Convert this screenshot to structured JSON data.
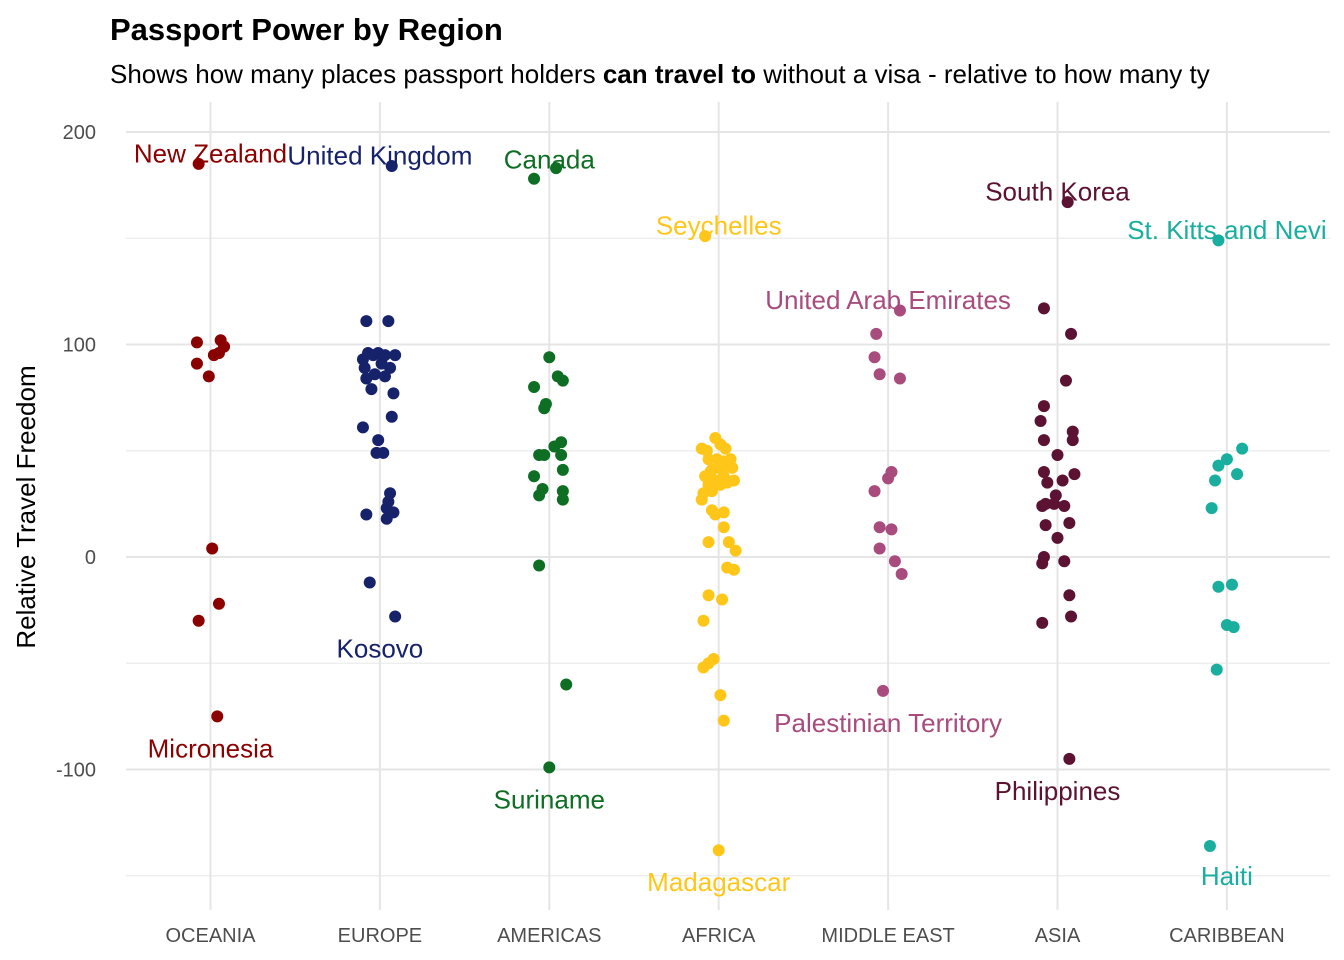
{
  "chart_data": {
    "type": "scatter",
    "title": "Passport Power by Region",
    "subtitle": {
      "before": "Shows how many places passport holders ",
      "bold": "can travel to",
      "after": " without a visa - relative to how many ty"
    },
    "xlabel": "",
    "ylabel": "Relative Travel Freedom",
    "ylim": [
      -160,
      212
    ],
    "y_ticks": [
      200,
      100,
      0,
      -100
    ],
    "grid": true,
    "legend": "none",
    "categories": [
      "OCEANIA",
      "EUROPE",
      "AMERICAS",
      "AFRICA",
      "MIDDLE EAST",
      "ASIA",
      "CARIBBEAN"
    ],
    "series": [
      {
        "category": "OCEANIA",
        "color": "#8B0000",
        "points": [
          [
            -0.07,
            185
          ],
          [
            -0.08,
            101
          ],
          [
            -0.08,
            91
          ],
          [
            -0.01,
            85
          ],
          [
            0.02,
            95
          ],
          [
            0.06,
            102
          ],
          [
            0.08,
            99
          ],
          [
            0.05,
            96
          ],
          [
            0.01,
            4
          ],
          [
            0.05,
            -22
          ],
          [
            -0.07,
            -30
          ],
          [
            0.04,
            -75
          ]
        ]
      },
      {
        "category": "EUROPE",
        "color": "#16226A",
        "points": [
          [
            0.07,
            184
          ],
          [
            -0.08,
            111
          ],
          [
            0.05,
            111
          ],
          [
            -0.1,
            93
          ],
          [
            -0.07,
            96
          ],
          [
            -0.04,
            95
          ],
          [
            -0.01,
            96
          ],
          [
            0.03,
            95
          ],
          [
            0.09,
            95
          ],
          [
            -0.09,
            89
          ],
          [
            0.06,
            89
          ],
          [
            -0.08,
            84
          ],
          [
            -0.03,
            86
          ],
          [
            0.03,
            85
          ],
          [
            0.01,
            91
          ],
          [
            -0.05,
            79
          ],
          [
            0.08,
            77
          ],
          [
            0.07,
            66
          ],
          [
            -0.1,
            61
          ],
          [
            -0.01,
            55
          ],
          [
            -0.02,
            49
          ],
          [
            0.02,
            49
          ],
          [
            0.06,
            30
          ],
          [
            0.05,
            26
          ],
          [
            0.04,
            23
          ],
          [
            0.08,
            21
          ],
          [
            -0.08,
            20
          ],
          [
            0.04,
            18
          ],
          [
            -0.06,
            -12
          ],
          [
            0.09,
            -28
          ]
        ]
      },
      {
        "category": "AMERICAS",
        "color": "#0E6E23",
        "points": [
          [
            0.04,
            183
          ],
          [
            -0.09,
            178
          ],
          [
            0.0,
            94
          ],
          [
            0.05,
            85
          ],
          [
            0.08,
            83
          ],
          [
            -0.09,
            80
          ],
          [
            -0.02,
            72
          ],
          [
            -0.03,
            70
          ],
          [
            0.07,
            54
          ],
          [
            0.03,
            52
          ],
          [
            -0.06,
            48
          ],
          [
            -0.03,
            48
          ],
          [
            0.07,
            48
          ],
          [
            0.08,
            41
          ],
          [
            -0.09,
            38
          ],
          [
            -0.04,
            32
          ],
          [
            -0.06,
            29
          ],
          [
            0.08,
            31
          ],
          [
            0.08,
            27
          ],
          [
            -0.06,
            -4
          ],
          [
            0.1,
            -60
          ],
          [
            0.0,
            -99
          ]
        ]
      },
      {
        "category": "AFRICA",
        "color": "#FFC61A",
        "points": [
          [
            -0.08,
            151
          ],
          [
            -0.1,
            51
          ],
          [
            -0.07,
            50
          ],
          [
            -0.02,
            56
          ],
          [
            0.01,
            53
          ],
          [
            0.04,
            51
          ],
          [
            -0.06,
            46
          ],
          [
            -0.01,
            46
          ],
          [
            0.03,
            45
          ],
          [
            0.07,
            46
          ],
          [
            -0.04,
            41
          ],
          [
            0.0,
            42
          ],
          [
            -0.05,
            40
          ],
          [
            0.02,
            43
          ],
          [
            0.06,
            43
          ],
          [
            0.08,
            42
          ],
          [
            -0.08,
            38
          ],
          [
            -0.02,
            36
          ],
          [
            0.03,
            38
          ],
          [
            0.09,
            36
          ],
          [
            -0.06,
            34
          ],
          [
            0.01,
            34
          ],
          [
            0.05,
            35
          ],
          [
            -0.09,
            30
          ],
          [
            -0.04,
            31
          ],
          [
            -0.1,
            27
          ],
          [
            -0.04,
            22
          ],
          [
            -0.02,
            20
          ],
          [
            0.03,
            21
          ],
          [
            0.03,
            14
          ],
          [
            0.06,
            7
          ],
          [
            -0.06,
            7
          ],
          [
            0.1,
            3
          ],
          [
            0.05,
            -5
          ],
          [
            0.09,
            -6
          ],
          [
            -0.06,
            -18
          ],
          [
            0.02,
            -20
          ],
          [
            -0.09,
            -30
          ],
          [
            -0.03,
            -48
          ],
          [
            -0.06,
            -50
          ],
          [
            -0.09,
            -52
          ],
          [
            0.01,
            -65
          ],
          [
            0.03,
            -77
          ],
          [
            0.0,
            -138
          ]
        ]
      },
      {
        "category": "MIDDLE EAST",
        "color": "#A84B7D",
        "points": [
          [
            0.07,
            116
          ],
          [
            -0.07,
            105
          ],
          [
            -0.08,
            94
          ],
          [
            -0.05,
            86
          ],
          [
            0.07,
            84
          ],
          [
            0.02,
            40
          ],
          [
            0.0,
            37
          ],
          [
            -0.08,
            31
          ],
          [
            -0.05,
            14
          ],
          [
            0.02,
            13
          ],
          [
            -0.05,
            4
          ],
          [
            0.04,
            -2
          ],
          [
            0.08,
            -8
          ],
          [
            -0.03,
            -63
          ]
        ]
      },
      {
        "category": "ASIA",
        "color": "#5C1232",
        "points": [
          [
            0.06,
            167
          ],
          [
            -0.08,
            117
          ],
          [
            0.08,
            105
          ],
          [
            0.05,
            83
          ],
          [
            -0.08,
            71
          ],
          [
            -0.1,
            64
          ],
          [
            0.09,
            59
          ],
          [
            -0.08,
            55
          ],
          [
            0.09,
            55
          ],
          [
            0.0,
            48
          ],
          [
            -0.08,
            40
          ],
          [
            0.1,
            39
          ],
          [
            0.03,
            36
          ],
          [
            -0.06,
            35
          ],
          [
            -0.01,
            29
          ],
          [
            -0.02,
            25
          ],
          [
            0.04,
            24
          ],
          [
            -0.09,
            24
          ],
          [
            -0.07,
            25
          ],
          [
            0.07,
            16
          ],
          [
            -0.07,
            15
          ],
          [
            0.0,
            9
          ],
          [
            0.04,
            -2
          ],
          [
            -0.08,
            0
          ],
          [
            -0.09,
            -3
          ],
          [
            0.07,
            -18
          ],
          [
            0.08,
            -28
          ],
          [
            -0.09,
            -31
          ],
          [
            0.07,
            -95
          ]
        ]
      },
      {
        "category": "CARIBBEAN",
        "color": "#1AAE9F",
        "points": [
          [
            -0.05,
            149
          ],
          [
            0.09,
            51
          ],
          [
            -0.05,
            43
          ],
          [
            0.0,
            46
          ],
          [
            0.06,
            39
          ],
          [
            -0.07,
            36
          ],
          [
            -0.09,
            23
          ],
          [
            -0.05,
            -14
          ],
          [
            0.03,
            -13
          ],
          [
            0.0,
            -32
          ],
          [
            0.04,
            -33
          ],
          [
            -0.06,
            -53
          ],
          [
            -0.1,
            -136
          ]
        ]
      }
    ],
    "annotations": [
      {
        "text": "New Zealand",
        "category": "OCEANIA",
        "dx": 0.0,
        "y": 190,
        "color": "#8B0000"
      },
      {
        "text": "United Kingdom",
        "category": "EUROPE",
        "dx": 0.0,
        "y": 189,
        "color": "#16226A"
      },
      {
        "text": "Canada",
        "category": "AMERICAS",
        "dx": 0.0,
        "y": 187,
        "color": "#0E6E23"
      },
      {
        "text": "Seychelles",
        "category": "AFRICA",
        "dx": 0.0,
        "y": 156,
        "color": "#FFC61A"
      },
      {
        "text": "United Arab Emirates",
        "category": "MIDDLE EAST",
        "dx": 0.0,
        "y": 121,
        "color": "#A84B7D"
      },
      {
        "text": "South Korea",
        "category": "ASIA",
        "dx": 0.0,
        "y": 172,
        "color": "#5C1232"
      },
      {
        "text": "St. Kitts and Nevi",
        "category": "CARIBBEAN",
        "dx": 0.0,
        "y": 154,
        "color": "#1AAE9F"
      },
      {
        "text": "Micronesia",
        "category": "OCEANIA",
        "dx": 0.0,
        "y": -90,
        "color": "#8B0000"
      },
      {
        "text": "Kosovo",
        "category": "EUROPE",
        "dx": 0.0,
        "y": -43,
        "color": "#16226A"
      },
      {
        "text": "Suriname",
        "category": "AMERICAS",
        "dx": 0.0,
        "y": -114,
        "color": "#0E6E23"
      },
      {
        "text": "Madagascar",
        "category": "AFRICA",
        "dx": 0.0,
        "y": -153,
        "color": "#FFC61A"
      },
      {
        "text": "Palestinian Territory",
        "category": "MIDDLE EAST",
        "dx": 0.0,
        "y": -78,
        "color": "#A84B7D"
      },
      {
        "text": "Philippines",
        "category": "ASIA",
        "dx": 0.0,
        "y": -110,
        "color": "#5C1232"
      },
      {
        "text": "Haiti",
        "category": "CARIBBEAN",
        "dx": 0.0,
        "y": -150,
        "color": "#1AAE9F"
      }
    ]
  }
}
